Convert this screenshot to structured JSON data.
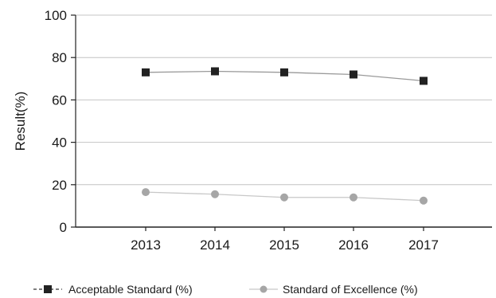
{
  "chart_data": {
    "type": "line",
    "x": [
      "2013",
      "2014",
      "2015",
      "2016",
      "2017"
    ],
    "ylabel": "Result(%)",
    "ylim": [
      0,
      100
    ],
    "yticks": [
      "0",
      "20",
      "40",
      "60",
      "80",
      "100"
    ],
    "grid": true,
    "legend_position": "bottom",
    "series": [
      {
        "name": "Acceptable Standard (%)",
        "values": [
          73,
          73.5,
          73,
          72,
          69
        ],
        "marker": "square",
        "color": "#222222",
        "line_color": "#9a9a9a"
      },
      {
        "name": "Standard of Excellence (%)",
        "values": [
          16.5,
          15.5,
          14,
          14,
          12.5
        ],
        "marker": "circle",
        "color": "#a6a6a6",
        "line_color": "#c8c8c8"
      }
    ]
  }
}
